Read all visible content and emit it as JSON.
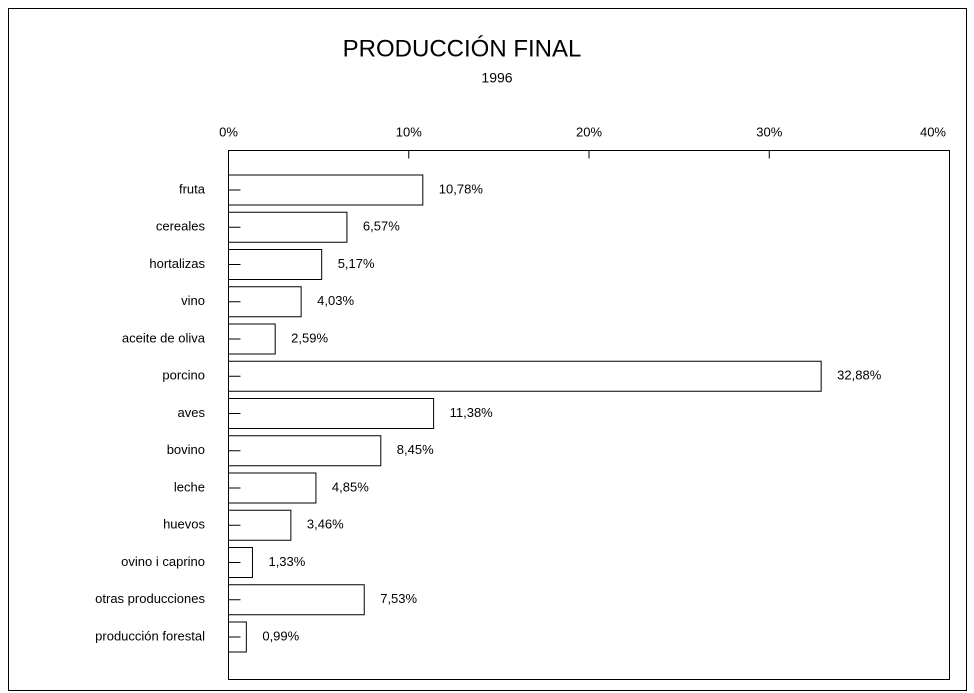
{
  "chart_data": {
    "type": "bar",
    "orientation": "horizontal",
    "title": "PRODUCCIÓN FINAL",
    "subtitle": "1996",
    "categories": [
      "fruta",
      "cereales",
      "hortalizas",
      "vino",
      "aceite de oliva",
      "porcino",
      "aves",
      "bovino",
      "leche",
      "huevos",
      "ovino i caprino",
      "otras producciones",
      "producción forestal"
    ],
    "values": [
      10.78,
      6.57,
      5.17,
      4.03,
      2.59,
      32.88,
      11.38,
      8.45,
      4.85,
      3.46,
      1.33,
      7.53,
      0.99
    ],
    "value_labels": [
      "10,78%",
      "6,57%",
      "5,17%",
      "4,03%",
      "2,59%",
      "32,88%",
      "11,38%",
      "8,45%",
      "4,85%",
      "3,46%",
      "1,33%",
      "7,53%",
      "0,99%"
    ],
    "color": "#ffffff",
    "xlim": [
      0,
      40
    ],
    "xticks": [
      {
        "value": 0,
        "label": "0%"
      },
      {
        "value": 10,
        "label": "10%"
      },
      {
        "value": 20,
        "label": "20%"
      },
      {
        "value": 30,
        "label": "30%"
      },
      {
        "value": 40,
        "label": "40%"
      }
    ],
    "grid": false
  }
}
